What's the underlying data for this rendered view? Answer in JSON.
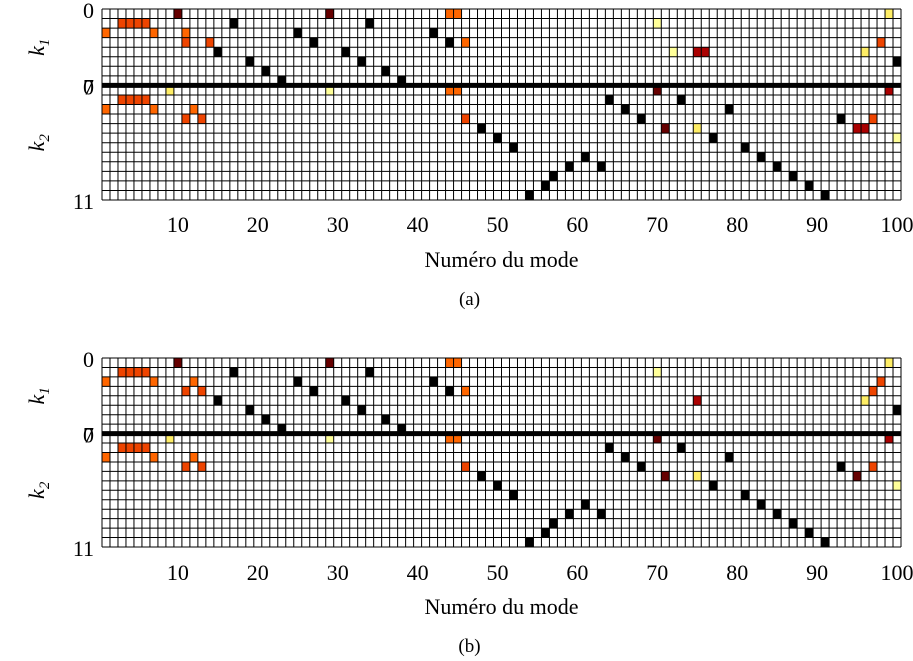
{
  "chart_data": [
    {
      "type": "heatmap",
      "caption": "(a)",
      "xlabel": "Numéro du mode",
      "xticks": [
        "10",
        "20",
        "30",
        "40",
        "50",
        "60",
        "70",
        "80",
        "90",
        "100"
      ],
      "x_range": [
        1,
        100
      ],
      "grid": true,
      "colors": {
        "cell": "#ffffff",
        "grid": "#000000",
        "divider": "#000000"
      },
      "color_scale": [
        "#ffffff",
        "#ffff99",
        "#ffee66",
        "#ff9933",
        "#ff6600",
        "#ee4400",
        "#aa0000",
        "#660000",
        "#000000"
      ],
      "blocks": [
        {
          "label": "k",
          "subscript": "1",
          "top_tick": "0",
          "bottom_tick": "7",
          "rows": 8,
          "cells": [
            {
              "x": 10,
              "row": 0,
              "v": 7
            },
            {
              "x": 29,
              "row": 0,
              "v": 7
            },
            {
              "x": 44,
              "row": 0,
              "v": 4
            },
            {
              "x": 45,
              "row": 0,
              "v": 4
            },
            {
              "x": 99,
              "row": 0,
              "v": 2
            },
            {
              "x": 3,
              "row": 1,
              "v": 5
            },
            {
              "x": 4,
              "row": 1,
              "v": 5
            },
            {
              "x": 5,
              "row": 1,
              "v": 5
            },
            {
              "x": 6,
              "row": 1,
              "v": 5
            },
            {
              "x": 17,
              "row": 1,
              "v": 8
            },
            {
              "x": 34,
              "row": 1,
              "v": 8
            },
            {
              "x": 70,
              "row": 1,
              "v": 1
            },
            {
              "x": 1,
              "row": 2,
              "v": 4
            },
            {
              "x": 7,
              "row": 2,
              "v": 4
            },
            {
              "x": 11,
              "row": 2,
              "v": 4
            },
            {
              "x": 25,
              "row": 2,
              "v": 8
            },
            {
              "x": 42,
              "row": 2,
              "v": 8
            },
            {
              "x": 11,
              "row": 3,
              "v": 5
            },
            {
              "x": 14,
              "row": 3,
              "v": 5
            },
            {
              "x": 27,
              "row": 3,
              "v": 8
            },
            {
              "x": 44,
              "row": 3,
              "v": 8
            },
            {
              "x": 46,
              "row": 3,
              "v": 4
            },
            {
              "x": 98,
              "row": 3,
              "v": 5
            },
            {
              "x": 15,
              "row": 4,
              "v": 8
            },
            {
              "x": 31,
              "row": 4,
              "v": 8
            },
            {
              "x": 72,
              "row": 4,
              "v": 1
            },
            {
              "x": 75,
              "row": 4,
              "v": 6
            },
            {
              "x": 76,
              "row": 4,
              "v": 6
            },
            {
              "x": 96,
              "row": 4,
              "v": 2
            },
            {
              "x": 19,
              "row": 5,
              "v": 8
            },
            {
              "x": 33,
              "row": 5,
              "v": 8
            },
            {
              "x": 100,
              "row": 5,
              "v": 8
            },
            {
              "x": 21,
              "row": 6,
              "v": 8
            },
            {
              "x": 36,
              "row": 6,
              "v": 8
            },
            {
              "x": 23,
              "row": 7,
              "v": 8
            },
            {
              "x": 38,
              "row": 7,
              "v": 8
            }
          ]
        },
        {
          "label": "k",
          "subscript": "2",
          "top_tick": "0",
          "bottom_tick": "11",
          "rows": 12,
          "cells": [
            {
              "x": 9,
              "row": 0,
              "v": 2
            },
            {
              "x": 29,
              "row": 0,
              "v": 1
            },
            {
              "x": 44,
              "row": 0,
              "v": 4
            },
            {
              "x": 45,
              "row": 0,
              "v": 4
            },
            {
              "x": 70,
              "row": 0,
              "v": 7
            },
            {
              "x": 99,
              "row": 0,
              "v": 6
            },
            {
              "x": 3,
              "row": 1,
              "v": 5
            },
            {
              "x": 4,
              "row": 1,
              "v": 5
            },
            {
              "x": 5,
              "row": 1,
              "v": 5
            },
            {
              "x": 6,
              "row": 1,
              "v": 5
            },
            {
              "x": 64,
              "row": 1,
              "v": 8
            },
            {
              "x": 73,
              "row": 1,
              "v": 8
            },
            {
              "x": 1,
              "row": 2,
              "v": 4
            },
            {
              "x": 7,
              "row": 2,
              "v": 4
            },
            {
              "x": 12,
              "row": 2,
              "v": 4
            },
            {
              "x": 66,
              "row": 2,
              "v": 8
            },
            {
              "x": 79,
              "row": 2,
              "v": 8
            },
            {
              "x": 11,
              "row": 3,
              "v": 5
            },
            {
              "x": 13,
              "row": 3,
              "v": 5
            },
            {
              "x": 46,
              "row": 3,
              "v": 5
            },
            {
              "x": 68,
              "row": 3,
              "v": 8
            },
            {
              "x": 93,
              "row": 3,
              "v": 8
            },
            {
              "x": 97,
              "row": 3,
              "v": 5
            },
            {
              "x": 48,
              "row": 4,
              "v": 8
            },
            {
              "x": 71,
              "row": 4,
              "v": 7
            },
            {
              "x": 75,
              "row": 4,
              "v": 2
            },
            {
              "x": 95,
              "row": 4,
              "v": 6
            },
            {
              "x": 96,
              "row": 4,
              "v": 6
            },
            {
              "x": 50,
              "row": 5,
              "v": 8
            },
            {
              "x": 77,
              "row": 5,
              "v": 8
            },
            {
              "x": 100,
              "row": 5,
              "v": 1
            },
            {
              "x": 52,
              "row": 6,
              "v": 8
            },
            {
              "x": 81,
              "row": 6,
              "v": 8
            },
            {
              "x": 61,
              "row": 7,
              "v": 8
            },
            {
              "x": 83,
              "row": 7,
              "v": 8
            },
            {
              "x": 59,
              "row": 8,
              "v": 8
            },
            {
              "x": 63,
              "row": 8,
              "v": 8
            },
            {
              "x": 85,
              "row": 8,
              "v": 8
            },
            {
              "x": 57,
              "row": 9,
              "v": 8
            },
            {
              "x": 87,
              "row": 9,
              "v": 8
            },
            {
              "x": 56,
              "row": 10,
              "v": 8
            },
            {
              "x": 89,
              "row": 10,
              "v": 8
            },
            {
              "x": 54,
              "row": 11,
              "v": 8
            },
            {
              "x": 91,
              "row": 11,
              "v": 8
            }
          ]
        }
      ]
    },
    {
      "type": "heatmap",
      "caption": "(b)",
      "xlabel": "Numéro du mode",
      "xticks": [
        "10",
        "20",
        "30",
        "40",
        "50",
        "60",
        "70",
        "80",
        "90",
        "100"
      ],
      "x_range": [
        1,
        100
      ],
      "grid": true,
      "colors": {
        "cell": "#ffffff",
        "grid": "#000000",
        "divider": "#000000"
      },
      "color_scale": [
        "#ffffff",
        "#ffff99",
        "#ffee66",
        "#ff9933",
        "#ff6600",
        "#ee4400",
        "#aa0000",
        "#660000",
        "#000000"
      ],
      "blocks": [
        {
          "label": "k",
          "subscript": "1",
          "top_tick": "0",
          "bottom_tick": "7",
          "rows": 8,
          "cells": [
            {
              "x": 10,
              "row": 0,
              "v": 7
            },
            {
              "x": 29,
              "row": 0,
              "v": 7
            },
            {
              "x": 44,
              "row": 0,
              "v": 4
            },
            {
              "x": 45,
              "row": 0,
              "v": 4
            },
            {
              "x": 99,
              "row": 0,
              "v": 2
            },
            {
              "x": 3,
              "row": 1,
              "v": 5
            },
            {
              "x": 4,
              "row": 1,
              "v": 5
            },
            {
              "x": 5,
              "row": 1,
              "v": 5
            },
            {
              "x": 6,
              "row": 1,
              "v": 5
            },
            {
              "x": 17,
              "row": 1,
              "v": 8
            },
            {
              "x": 34,
              "row": 1,
              "v": 8
            },
            {
              "x": 70,
              "row": 1,
              "v": 1
            },
            {
              "x": 1,
              "row": 2,
              "v": 4
            },
            {
              "x": 7,
              "row": 2,
              "v": 4
            },
            {
              "x": 12,
              "row": 2,
              "v": 4
            },
            {
              "x": 25,
              "row": 2,
              "v": 8
            },
            {
              "x": 42,
              "row": 2,
              "v": 8
            },
            {
              "x": 98,
              "row": 2,
              "v": 5
            },
            {
              "x": 11,
              "row": 3,
              "v": 5
            },
            {
              "x": 13,
              "row": 3,
              "v": 5
            },
            {
              "x": 27,
              "row": 3,
              "v": 8
            },
            {
              "x": 44,
              "row": 3,
              "v": 8
            },
            {
              "x": 46,
              "row": 3,
              "v": 4
            },
            {
              "x": 97,
              "row": 3,
              "v": 5
            },
            {
              "x": 15,
              "row": 4,
              "v": 8
            },
            {
              "x": 31,
              "row": 4,
              "v": 8
            },
            {
              "x": 75,
              "row": 4,
              "v": 6
            },
            {
              "x": 96,
              "row": 4,
              "v": 2
            },
            {
              "x": 19,
              "row": 5,
              "v": 8
            },
            {
              "x": 33,
              "row": 5,
              "v": 8
            },
            {
              "x": 100,
              "row": 5,
              "v": 8
            },
            {
              "x": 21,
              "row": 6,
              "v": 8
            },
            {
              "x": 36,
              "row": 6,
              "v": 8
            },
            {
              "x": 23,
              "row": 7,
              "v": 8
            },
            {
              "x": 38,
              "row": 7,
              "v": 8
            }
          ]
        },
        {
          "label": "k",
          "subscript": "2",
          "top_tick": "0",
          "bottom_tick": "11",
          "rows": 12,
          "cells": [
            {
              "x": 9,
              "row": 0,
              "v": 2
            },
            {
              "x": 29,
              "row": 0,
              "v": 1
            },
            {
              "x": 44,
              "row": 0,
              "v": 4
            },
            {
              "x": 45,
              "row": 0,
              "v": 4
            },
            {
              "x": 70,
              "row": 0,
              "v": 7
            },
            {
              "x": 99,
              "row": 0,
              "v": 6
            },
            {
              "x": 3,
              "row": 1,
              "v": 5
            },
            {
              "x": 4,
              "row": 1,
              "v": 5
            },
            {
              "x": 5,
              "row": 1,
              "v": 5
            },
            {
              "x": 6,
              "row": 1,
              "v": 5
            },
            {
              "x": 64,
              "row": 1,
              "v": 8
            },
            {
              "x": 73,
              "row": 1,
              "v": 8
            },
            {
              "x": 1,
              "row": 2,
              "v": 4
            },
            {
              "x": 7,
              "row": 2,
              "v": 4
            },
            {
              "x": 12,
              "row": 2,
              "v": 4
            },
            {
              "x": 66,
              "row": 2,
              "v": 8
            },
            {
              "x": 79,
              "row": 2,
              "v": 8
            },
            {
              "x": 11,
              "row": 3,
              "v": 5
            },
            {
              "x": 13,
              "row": 3,
              "v": 5
            },
            {
              "x": 46,
              "row": 3,
              "v": 5
            },
            {
              "x": 68,
              "row": 3,
              "v": 8
            },
            {
              "x": 93,
              "row": 3,
              "v": 8
            },
            {
              "x": 97,
              "row": 3,
              "v": 5
            },
            {
              "x": 48,
              "row": 4,
              "v": 8
            },
            {
              "x": 71,
              "row": 4,
              "v": 7
            },
            {
              "x": 75,
              "row": 4,
              "v": 2
            },
            {
              "x": 95,
              "row": 4,
              "v": 7
            },
            {
              "x": 50,
              "row": 5,
              "v": 8
            },
            {
              "x": 77,
              "row": 5,
              "v": 8
            },
            {
              "x": 100,
              "row": 5,
              "v": 1
            },
            {
              "x": 52,
              "row": 6,
              "v": 8
            },
            {
              "x": 81,
              "row": 6,
              "v": 8
            },
            {
              "x": 61,
              "row": 7,
              "v": 8
            },
            {
              "x": 83,
              "row": 7,
              "v": 8
            },
            {
              "x": 59,
              "row": 8,
              "v": 8
            },
            {
              "x": 63,
              "row": 8,
              "v": 8
            },
            {
              "x": 85,
              "row": 8,
              "v": 8
            },
            {
              "x": 57,
              "row": 9,
              "v": 8
            },
            {
              "x": 87,
              "row": 9,
              "v": 8
            },
            {
              "x": 56,
              "row": 10,
              "v": 8
            },
            {
              "x": 89,
              "row": 10,
              "v": 8
            },
            {
              "x": 54,
              "row": 11,
              "v": 8
            },
            {
              "x": 91,
              "row": 11,
              "v": 8
            }
          ]
        }
      ]
    }
  ]
}
